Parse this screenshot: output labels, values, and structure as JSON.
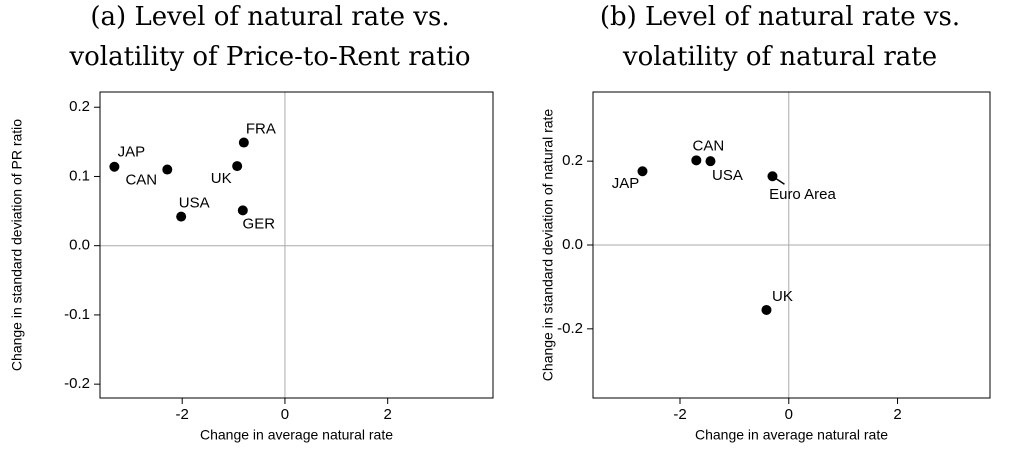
{
  "chart_data": [
    {
      "type": "scatter",
      "title": [
        "(a) Level of natural rate vs.",
        "volatility of Price-to-Rent ratio"
      ],
      "xlabel": "Change in average natural rate",
      "ylabel": "Change in standard deviation of PR ratio",
      "labels": [
        "JAP",
        "CAN",
        "USA",
        "UK",
        "FRA",
        "GER"
      ],
      "x": [
        -3.32,
        -2.29,
        -2.02,
        -0.93,
        -0.8,
        -0.82
      ],
      "values": [
        0.114,
        0.11,
        0.042,
        0.115,
        0.149,
        0.051
      ],
      "color": "#000000",
      "xlim": [
        -3.6,
        4.05
      ],
      "xticks": [
        -2,
        0,
        2
      ],
      "ylim": [
        -0.22,
        0.222
      ],
      "yticks": [
        0.2,
        0.1,
        {
          "value": 0,
          "label": "0.0"
        },
        -0.1,
        -0.2
      ],
      "zero_lines": true
    },
    {
      "type": "scatter",
      "title": [
        "(b) Level of natural rate vs.",
        "volatility of natural rate"
      ],
      "xlabel": "Change in average natural rate",
      "ylabel": "Change in standard deviation of natural rate",
      "labels": [
        "JAP",
        "CAN",
        "USA",
        "Euro Area",
        "UK"
      ],
      "x": [
        -2.69,
        -1.7,
        -1.44,
        -0.3,
        -0.41
      ],
      "values": [
        0.176,
        0.202,
        0.2,
        0.164,
        -0.155
      ],
      "color": "#000000",
      "xlim": [
        -3.6,
        3.7
      ],
      "xticks": [
        -2,
        0,
        2
      ],
      "ylim": [
        -0.365,
        0.365
      ],
      "yticks": [
        0.2,
        {
          "value": 0,
          "label": "0.0"
        },
        -0.2
      ],
      "zero_lines": true
    }
  ]
}
